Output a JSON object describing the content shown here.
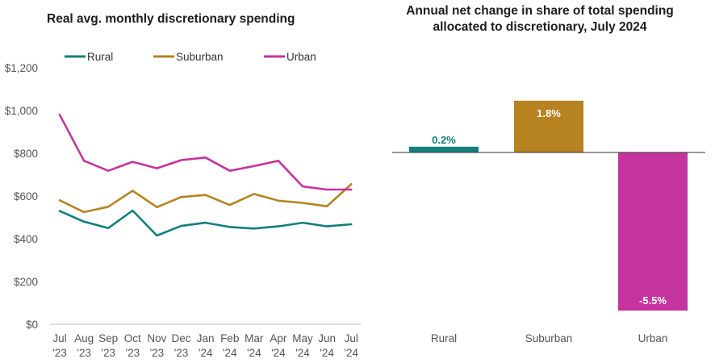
{
  "colors": {
    "rural": "#117f7b",
    "suburban": "#b68320",
    "urban": "#c5339f",
    "axis": "#555555",
    "zero_line": "#333333"
  },
  "chart_data": [
    {
      "type": "line",
      "title": "Real avg. monthly discretionary spending",
      "xlabel": "",
      "ylabel": "",
      "ylim": [
        0,
        1200
      ],
      "yticks": [
        "$0",
        "$200",
        "$400",
        "$600",
        "$800",
        "$1,000",
        "$1,200"
      ],
      "ytick_values": [
        0,
        200,
        400,
        600,
        800,
        1000,
        1200
      ],
      "grid": false,
      "legend_position": "top",
      "categories": [
        [
          "Jul",
          "'23"
        ],
        [
          "Aug",
          "'23"
        ],
        [
          "Sep",
          "'23"
        ],
        [
          "Oct",
          "'23"
        ],
        [
          "Nov",
          "'23"
        ],
        [
          "Dec",
          "'23"
        ],
        [
          "Jan",
          "'24"
        ],
        [
          "Feb",
          "'24"
        ],
        [
          "Mar",
          "'24"
        ],
        [
          "Apr",
          "'24"
        ],
        [
          "May",
          "'24"
        ],
        [
          "Jun",
          "'24"
        ],
        [
          "Jul",
          "'24"
        ]
      ],
      "series": [
        {
          "name": "Rural",
          "color": "#117f7b",
          "values": [
            530,
            480,
            450,
            532,
            415,
            460,
            475,
            455,
            448,
            458,
            475,
            458,
            468
          ]
        },
        {
          "name": "Suburban",
          "color": "#b68320",
          "values": [
            580,
            525,
            550,
            625,
            548,
            595,
            605,
            558,
            610,
            578,
            568,
            552,
            655
          ]
        },
        {
          "name": "Urban",
          "color": "#c5339f",
          "values": [
            980,
            765,
            718,
            760,
            730,
            768,
            780,
            718,
            740,
            765,
            645,
            630,
            630
          ]
        }
      ]
    },
    {
      "type": "bar",
      "title": [
        "Annual net change in share of total spending",
        "allocated to discretionary, July 2024"
      ],
      "xlabel": "",
      "ylabel": "",
      "grid": false,
      "categories": [
        "Rural",
        "Suburban",
        "Urban"
      ],
      "values": [
        0.2,
        1.8,
        -5.5
      ],
      "value_labels": [
        "0.2%",
        "1.8%",
        "-5.5%"
      ],
      "colors": [
        "#117f7b",
        "#b68320",
        "#c5339f"
      ],
      "label_colors": [
        "#117f7b",
        "#ffffff",
        "#ffffff"
      ],
      "label_positions": [
        "above",
        "inside",
        "inside"
      ]
    }
  ]
}
